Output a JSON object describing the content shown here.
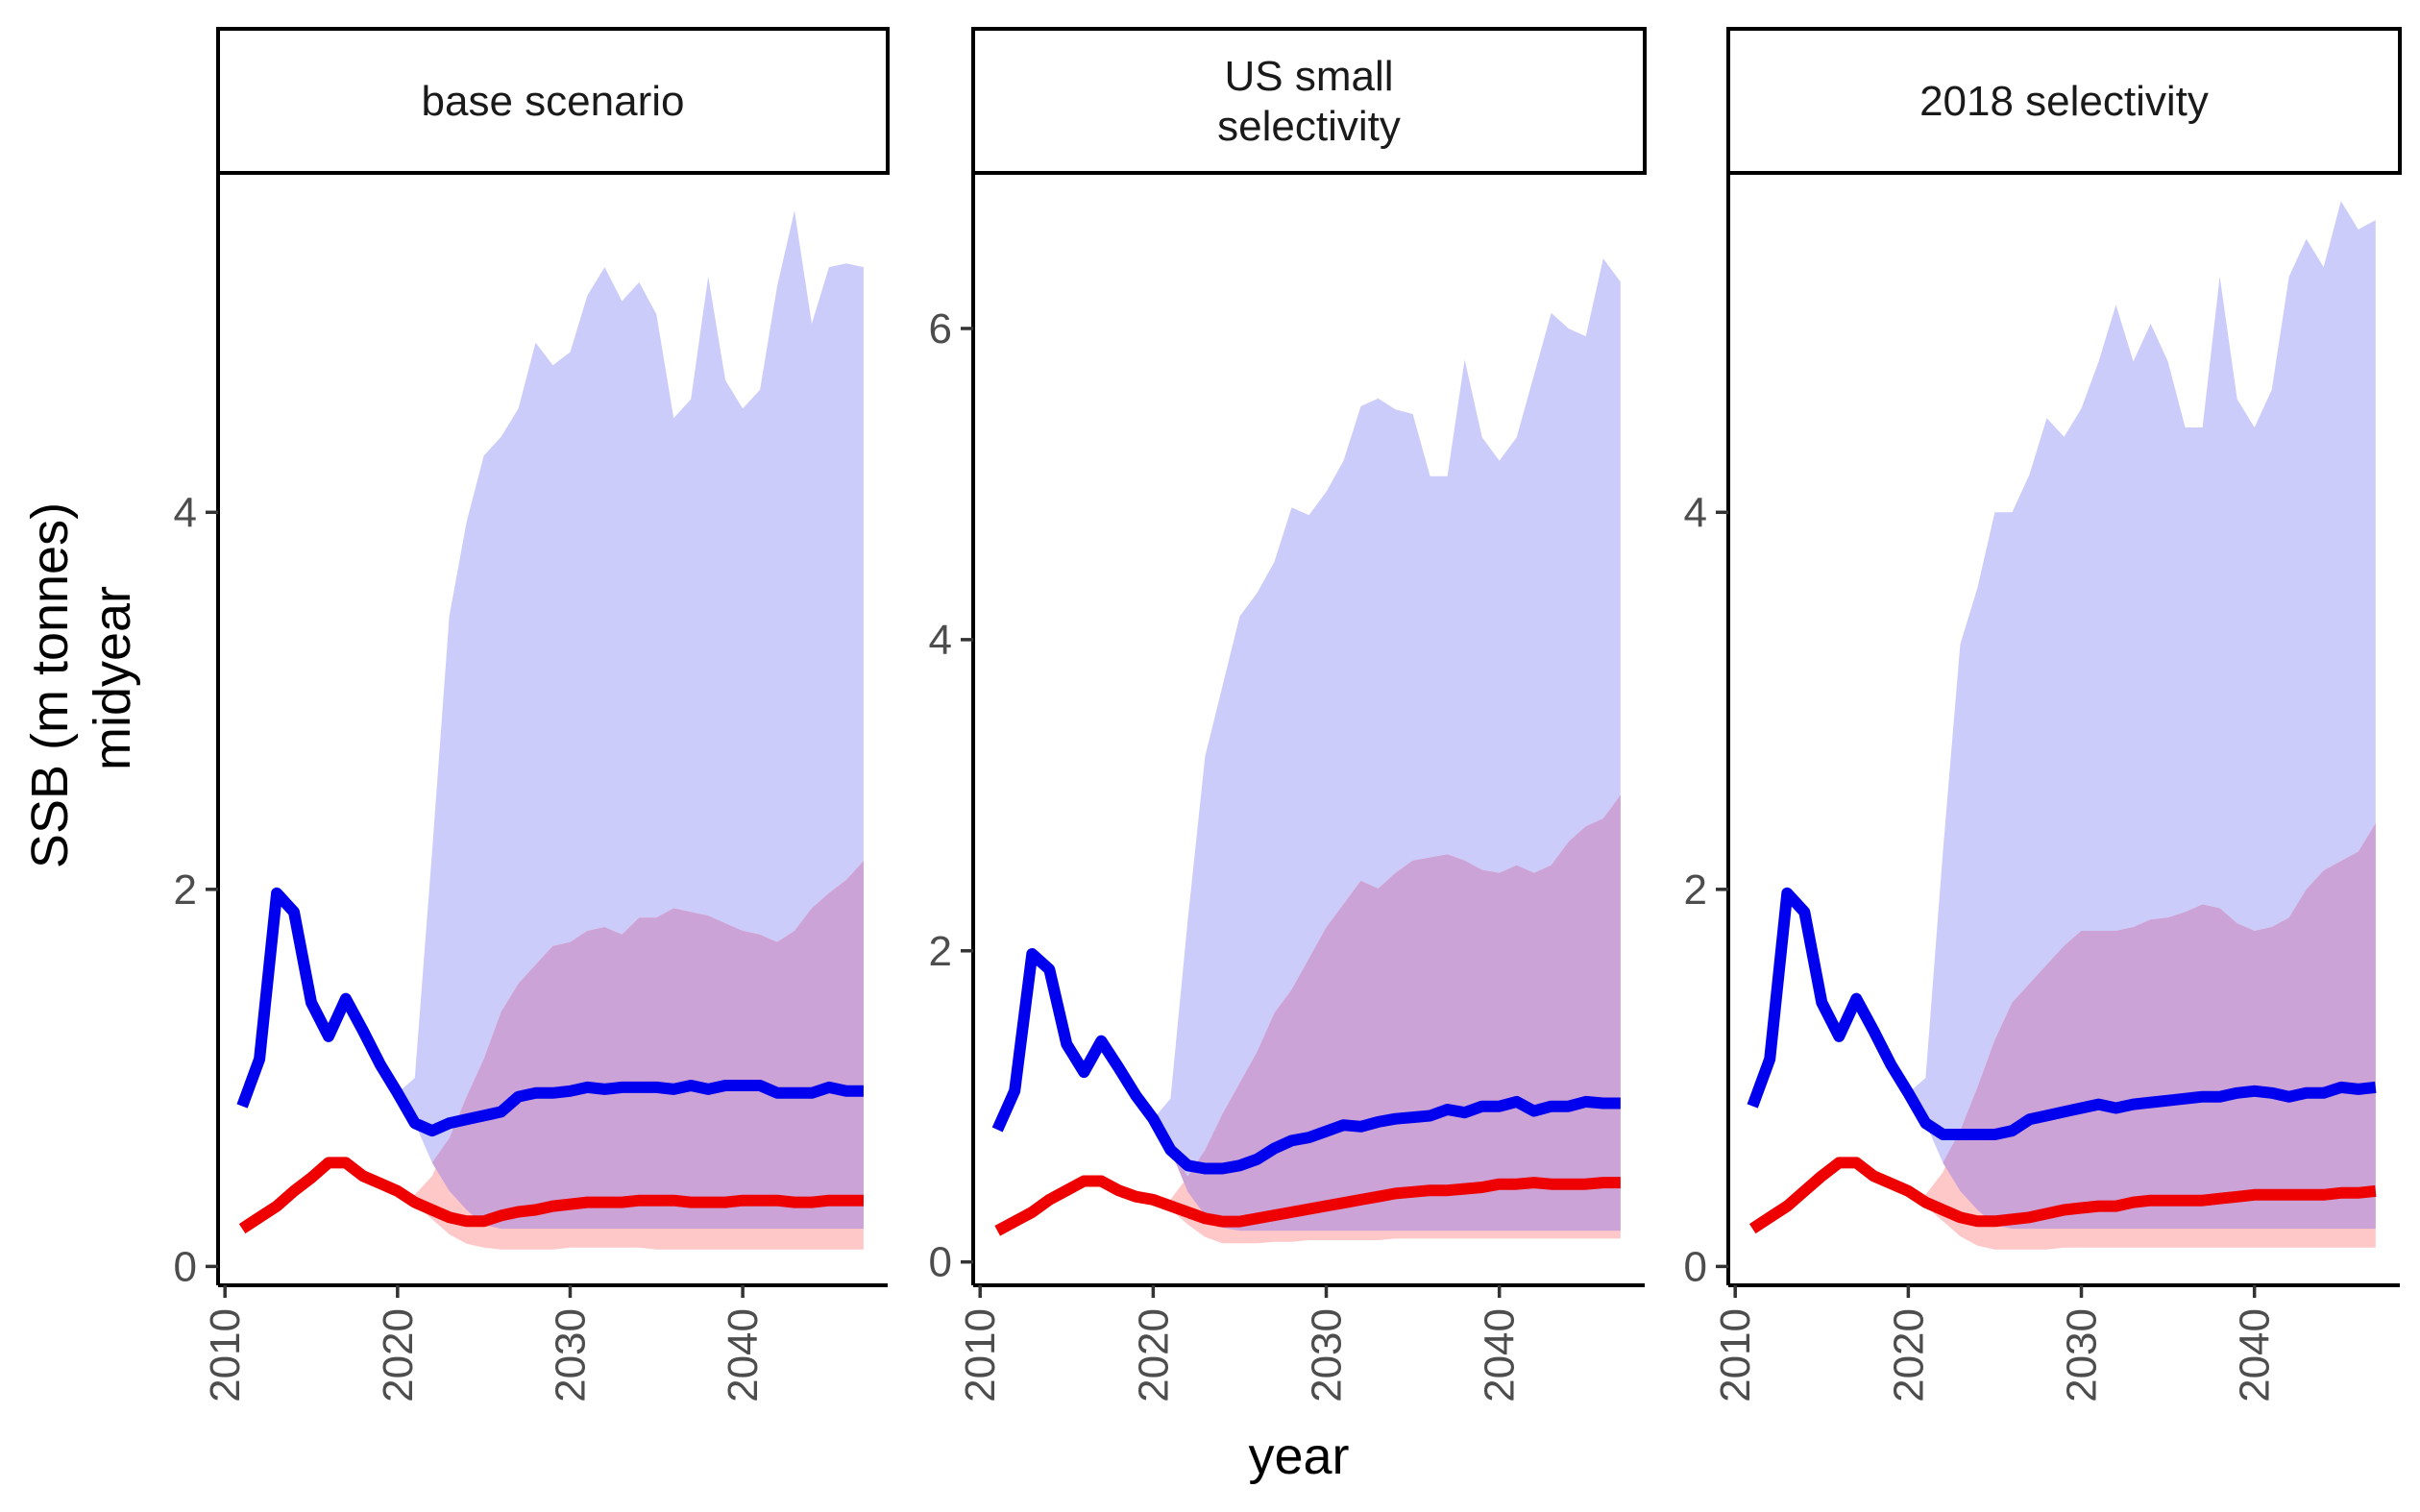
{
  "chart_data": {
    "type": "line",
    "xlabel": "year",
    "ylabel_lines": [
      "SSB (m tonnes)",
      "midyear"
    ],
    "x_ticks": [
      2010,
      2020,
      2030,
      2040
    ],
    "colors": {
      "blue_line": "#0000EE",
      "blue_band": "#CCCCFA",
      "red_line": "#EE0000",
      "red_band": "#FFC8C8",
      "overlap_band": "#CBA3D6"
    },
    "panels": [
      {
        "title": "base scenario",
        "ylim": [
          -0.1,
          5.8
        ],
        "y_ticks": [
          0,
          2,
          4
        ],
        "x": [
          2011,
          2012,
          2013,
          2014,
          2015,
          2016,
          2017,
          2018,
          2019,
          2020,
          2021,
          2022,
          2023,
          2024,
          2025,
          2026,
          2027,
          2028,
          2029,
          2030,
          2031,
          2032,
          2033,
          2034,
          2035,
          2036,
          2037,
          2038,
          2039,
          2040,
          2041,
          2042,
          2043,
          2044,
          2045,
          2046,
          2047
        ],
        "series": [
          {
            "name": "",
            "color": "blue",
            "median": [
              0.85,
              1.1,
              1.98,
              1.88,
              1.4,
              1.22,
              1.42,
              1.25,
              1.07,
              0.92,
              0.76,
              0.72,
              0.76,
              0.78,
              0.8,
              0.82,
              0.9,
              0.92,
              0.92,
              0.93,
              0.95,
              0.94,
              0.95,
              0.95,
              0.95,
              0.94,
              0.96,
              0.94,
              0.96,
              0.96,
              0.96,
              0.92,
              0.92,
              0.92,
              0.95,
              0.93,
              0.93
            ],
            "lower": [
              0.85,
              1.1,
              1.98,
              1.88,
              1.4,
              1.22,
              1.42,
              1.25,
              1.07,
              0.92,
              0.76,
              0.55,
              0.4,
              0.3,
              0.22,
              0.2,
              0.2,
              0.2,
              0.2,
              0.2,
              0.2,
              0.2,
              0.2,
              0.2,
              0.2,
              0.2,
              0.2,
              0.2,
              0.2,
              0.2,
              0.2,
              0.2,
              0.2,
              0.2,
              0.2,
              0.2,
              0.2
            ],
            "upper": [
              0.85,
              1.1,
              1.98,
              1.88,
              1.4,
              1.22,
              1.42,
              1.25,
              1.07,
              0.92,
              1.0,
              2.2,
              3.45,
              3.95,
              4.3,
              4.4,
              4.55,
              4.9,
              4.78,
              4.85,
              5.15,
              5.3,
              5.12,
              5.22,
              5.05,
              4.5,
              4.6,
              5.25,
              4.7,
              4.55,
              4.65,
              5.2,
              5.6,
              5.0,
              5.3,
              5.32,
              5.3
            ]
          },
          {
            "name": "",
            "color": "red",
            "median": [
              0.2,
              0.26,
              0.32,
              0.4,
              0.47,
              0.55,
              0.55,
              0.48,
              0.44,
              0.4,
              0.34,
              0.3,
              0.26,
              0.24,
              0.24,
              0.27,
              0.29,
              0.3,
              0.32,
              0.33,
              0.34,
              0.34,
              0.34,
              0.35,
              0.35,
              0.35,
              0.34,
              0.34,
              0.34,
              0.35,
              0.35,
              0.35,
              0.34,
              0.34,
              0.35,
              0.35,
              0.35
            ],
            "lower": [
              0.2,
              0.26,
              0.32,
              0.4,
              0.47,
              0.55,
              0.55,
              0.48,
              0.44,
              0.4,
              0.33,
              0.25,
              0.17,
              0.12,
              0.1,
              0.09,
              0.09,
              0.09,
              0.09,
              0.1,
              0.1,
              0.1,
              0.1,
              0.1,
              0.09,
              0.09,
              0.09,
              0.09,
              0.09,
              0.09,
              0.09,
              0.09,
              0.09,
              0.09,
              0.09,
              0.09,
              0.09
            ],
            "upper": [
              0.2,
              0.26,
              0.32,
              0.4,
              0.47,
              0.55,
              0.55,
              0.48,
              0.44,
              0.4,
              0.38,
              0.48,
              0.68,
              0.9,
              1.1,
              1.35,
              1.5,
              1.6,
              1.7,
              1.72,
              1.78,
              1.8,
              1.76,
              1.85,
              1.85,
              1.9,
              1.88,
              1.86,
              1.82,
              1.78,
              1.76,
              1.72,
              1.78,
              1.9,
              1.98,
              2.05,
              2.15
            ]
          }
        ]
      },
      {
        "title": "US small\nselectivity",
        "ylim": [
          -0.15,
          7.0
        ],
        "y_ticks": [
          0,
          2,
          4,
          6
        ],
        "x": [
          2011,
          2012,
          2013,
          2014,
          2015,
          2016,
          2017,
          2018,
          2019,
          2020,
          2021,
          2022,
          2023,
          2024,
          2025,
          2026,
          2027,
          2028,
          2029,
          2030,
          2031,
          2032,
          2033,
          2034,
          2035,
          2036,
          2037,
          2038,
          2039,
          2040,
          2041,
          2042,
          2043,
          2044,
          2045,
          2046,
          2047
        ],
        "series": [
          {
            "name": "",
            "color": "blue",
            "median": [
              0.85,
              1.1,
              1.98,
              1.88,
              1.4,
              1.22,
              1.42,
              1.25,
              1.07,
              0.92,
              0.72,
              0.62,
              0.6,
              0.6,
              0.62,
              0.66,
              0.73,
              0.78,
              0.8,
              0.84,
              0.88,
              0.87,
              0.9,
              0.92,
              0.93,
              0.94,
              0.98,
              0.96,
              1.0,
              1.0,
              1.03,
              0.97,
              1.0,
              1.0,
              1.03,
              1.02,
              1.02
            ],
            "lower": [
              0.85,
              1.1,
              1.98,
              1.88,
              1.4,
              1.22,
              1.42,
              1.25,
              1.07,
              0.92,
              0.72,
              0.45,
              0.3,
              0.22,
              0.2,
              0.2,
              0.2,
              0.2,
              0.2,
              0.2,
              0.2,
              0.2,
              0.2,
              0.2,
              0.2,
              0.2,
              0.2,
              0.2,
              0.2,
              0.2,
              0.2,
              0.2,
              0.2,
              0.2,
              0.2,
              0.2,
              0.2
            ],
            "upper": [
              0.85,
              1.1,
              1.98,
              1.88,
              1.4,
              1.22,
              1.42,
              1.25,
              1.07,
              0.92,
              1.05,
              2.2,
              3.25,
              3.7,
              4.15,
              4.3,
              4.5,
              4.85,
              4.8,
              4.95,
              5.15,
              5.5,
              5.55,
              5.48,
              5.45,
              5.05,
              5.05,
              5.8,
              5.3,
              5.15,
              5.3,
              5.7,
              6.1,
              6.0,
              5.95,
              6.45,
              6.3
            ]
          },
          {
            "name": "",
            "color": "red",
            "median": [
              0.2,
              0.26,
              0.32,
              0.4,
              0.46,
              0.52,
              0.52,
              0.46,
              0.42,
              0.4,
              0.36,
              0.32,
              0.28,
              0.26,
              0.26,
              0.28,
              0.3,
              0.32,
              0.34,
              0.36,
              0.38,
              0.4,
              0.42,
              0.44,
              0.45,
              0.46,
              0.46,
              0.47,
              0.48,
              0.5,
              0.5,
              0.51,
              0.5,
              0.5,
              0.5,
              0.51,
              0.51
            ],
            "lower": [
              0.2,
              0.26,
              0.32,
              0.4,
              0.46,
              0.52,
              0.52,
              0.46,
              0.42,
              0.4,
              0.34,
              0.24,
              0.16,
              0.12,
              0.12,
              0.12,
              0.13,
              0.13,
              0.14,
              0.14,
              0.14,
              0.14,
              0.14,
              0.15,
              0.15,
              0.15,
              0.15,
              0.15,
              0.15,
              0.15,
              0.15,
              0.15,
              0.15,
              0.15,
              0.15,
              0.15,
              0.15
            ],
            "upper": [
              0.2,
              0.26,
              0.32,
              0.4,
              0.46,
              0.52,
              0.52,
              0.46,
              0.42,
              0.4,
              0.4,
              0.55,
              0.72,
              0.95,
              1.15,
              1.35,
              1.6,
              1.75,
              1.95,
              2.15,
              2.3,
              2.45,
              2.4,
              2.5,
              2.58,
              2.6,
              2.62,
              2.58,
              2.52,
              2.5,
              2.55,
              2.5,
              2.55,
              2.7,
              2.8,
              2.85,
              3.0
            ]
          }
        ]
      },
      {
        "title": "2018 selectivity",
        "ylim": [
          -0.1,
          5.8
        ],
        "y_ticks": [
          0,
          2,
          4
        ],
        "x": [
          2011,
          2012,
          2013,
          2014,
          2015,
          2016,
          2017,
          2018,
          2019,
          2020,
          2021,
          2022,
          2023,
          2024,
          2025,
          2026,
          2027,
          2028,
          2029,
          2030,
          2031,
          2032,
          2033,
          2034,
          2035,
          2036,
          2037,
          2038,
          2039,
          2040,
          2041,
          2042,
          2043,
          2044,
          2045,
          2046,
          2047
        ],
        "series": [
          {
            "name": "",
            "color": "blue",
            "median": [
              0.85,
              1.1,
              1.98,
              1.88,
              1.4,
              1.22,
              1.42,
              1.25,
              1.07,
              0.92,
              0.76,
              0.7,
              0.7,
              0.7,
              0.7,
              0.72,
              0.78,
              0.8,
              0.82,
              0.84,
              0.86,
              0.84,
              0.86,
              0.87,
              0.88,
              0.89,
              0.9,
              0.9,
              0.92,
              0.93,
              0.92,
              0.9,
              0.92,
              0.92,
              0.95,
              0.94,
              0.95
            ],
            "lower": [
              0.85,
              1.1,
              1.98,
              1.88,
              1.4,
              1.22,
              1.42,
              1.25,
              1.07,
              0.92,
              0.76,
              0.55,
              0.4,
              0.3,
              0.22,
              0.2,
              0.2,
              0.2,
              0.2,
              0.2,
              0.2,
              0.2,
              0.2,
              0.2,
              0.2,
              0.2,
              0.2,
              0.2,
              0.2,
              0.2,
              0.2,
              0.2,
              0.2,
              0.2,
              0.2,
              0.2,
              0.2
            ],
            "upper": [
              0.85,
              1.1,
              1.98,
              1.88,
              1.4,
              1.22,
              1.42,
              1.25,
              1.07,
              0.92,
              1.0,
              2.2,
              3.3,
              3.6,
              4.0,
              4.0,
              4.2,
              4.5,
              4.4,
              4.55,
              4.8,
              5.1,
              4.8,
              5.0,
              4.8,
              4.45,
              4.45,
              5.25,
              4.6,
              4.45,
              4.65,
              5.25,
              5.45,
              5.3,
              5.65,
              5.5,
              5.55
            ]
          },
          {
            "name": "",
            "color": "red",
            "median": [
              0.2,
              0.26,
              0.32,
              0.4,
              0.48,
              0.55,
              0.55,
              0.48,
              0.44,
              0.4,
              0.34,
              0.3,
              0.26,
              0.24,
              0.24,
              0.25,
              0.26,
              0.28,
              0.3,
              0.31,
              0.32,
              0.32,
              0.34,
              0.35,
              0.35,
              0.35,
              0.35,
              0.36,
              0.37,
              0.38,
              0.38,
              0.38,
              0.38,
              0.38,
              0.39,
              0.39,
              0.4
            ],
            "lower": [
              0.2,
              0.26,
              0.32,
              0.4,
              0.48,
              0.55,
              0.55,
              0.48,
              0.44,
              0.4,
              0.32,
              0.24,
              0.16,
              0.11,
              0.09,
              0.09,
              0.09,
              0.09,
              0.1,
              0.1,
              0.1,
              0.1,
              0.1,
              0.1,
              0.1,
              0.1,
              0.1,
              0.1,
              0.1,
              0.1,
              0.1,
              0.1,
              0.1,
              0.1,
              0.1,
              0.1,
              0.1
            ],
            "upper": [
              0.2,
              0.26,
              0.32,
              0.4,
              0.48,
              0.55,
              0.55,
              0.48,
              0.44,
              0.4,
              0.38,
              0.5,
              0.72,
              0.95,
              1.2,
              1.4,
              1.5,
              1.6,
              1.7,
              1.78,
              1.78,
              1.78,
              1.8,
              1.84,
              1.85,
              1.88,
              1.92,
              1.9,
              1.82,
              1.78,
              1.8,
              1.85,
              2.0,
              2.1,
              2.15,
              2.2,
              2.35
            ]
          }
        ]
      }
    ]
  }
}
